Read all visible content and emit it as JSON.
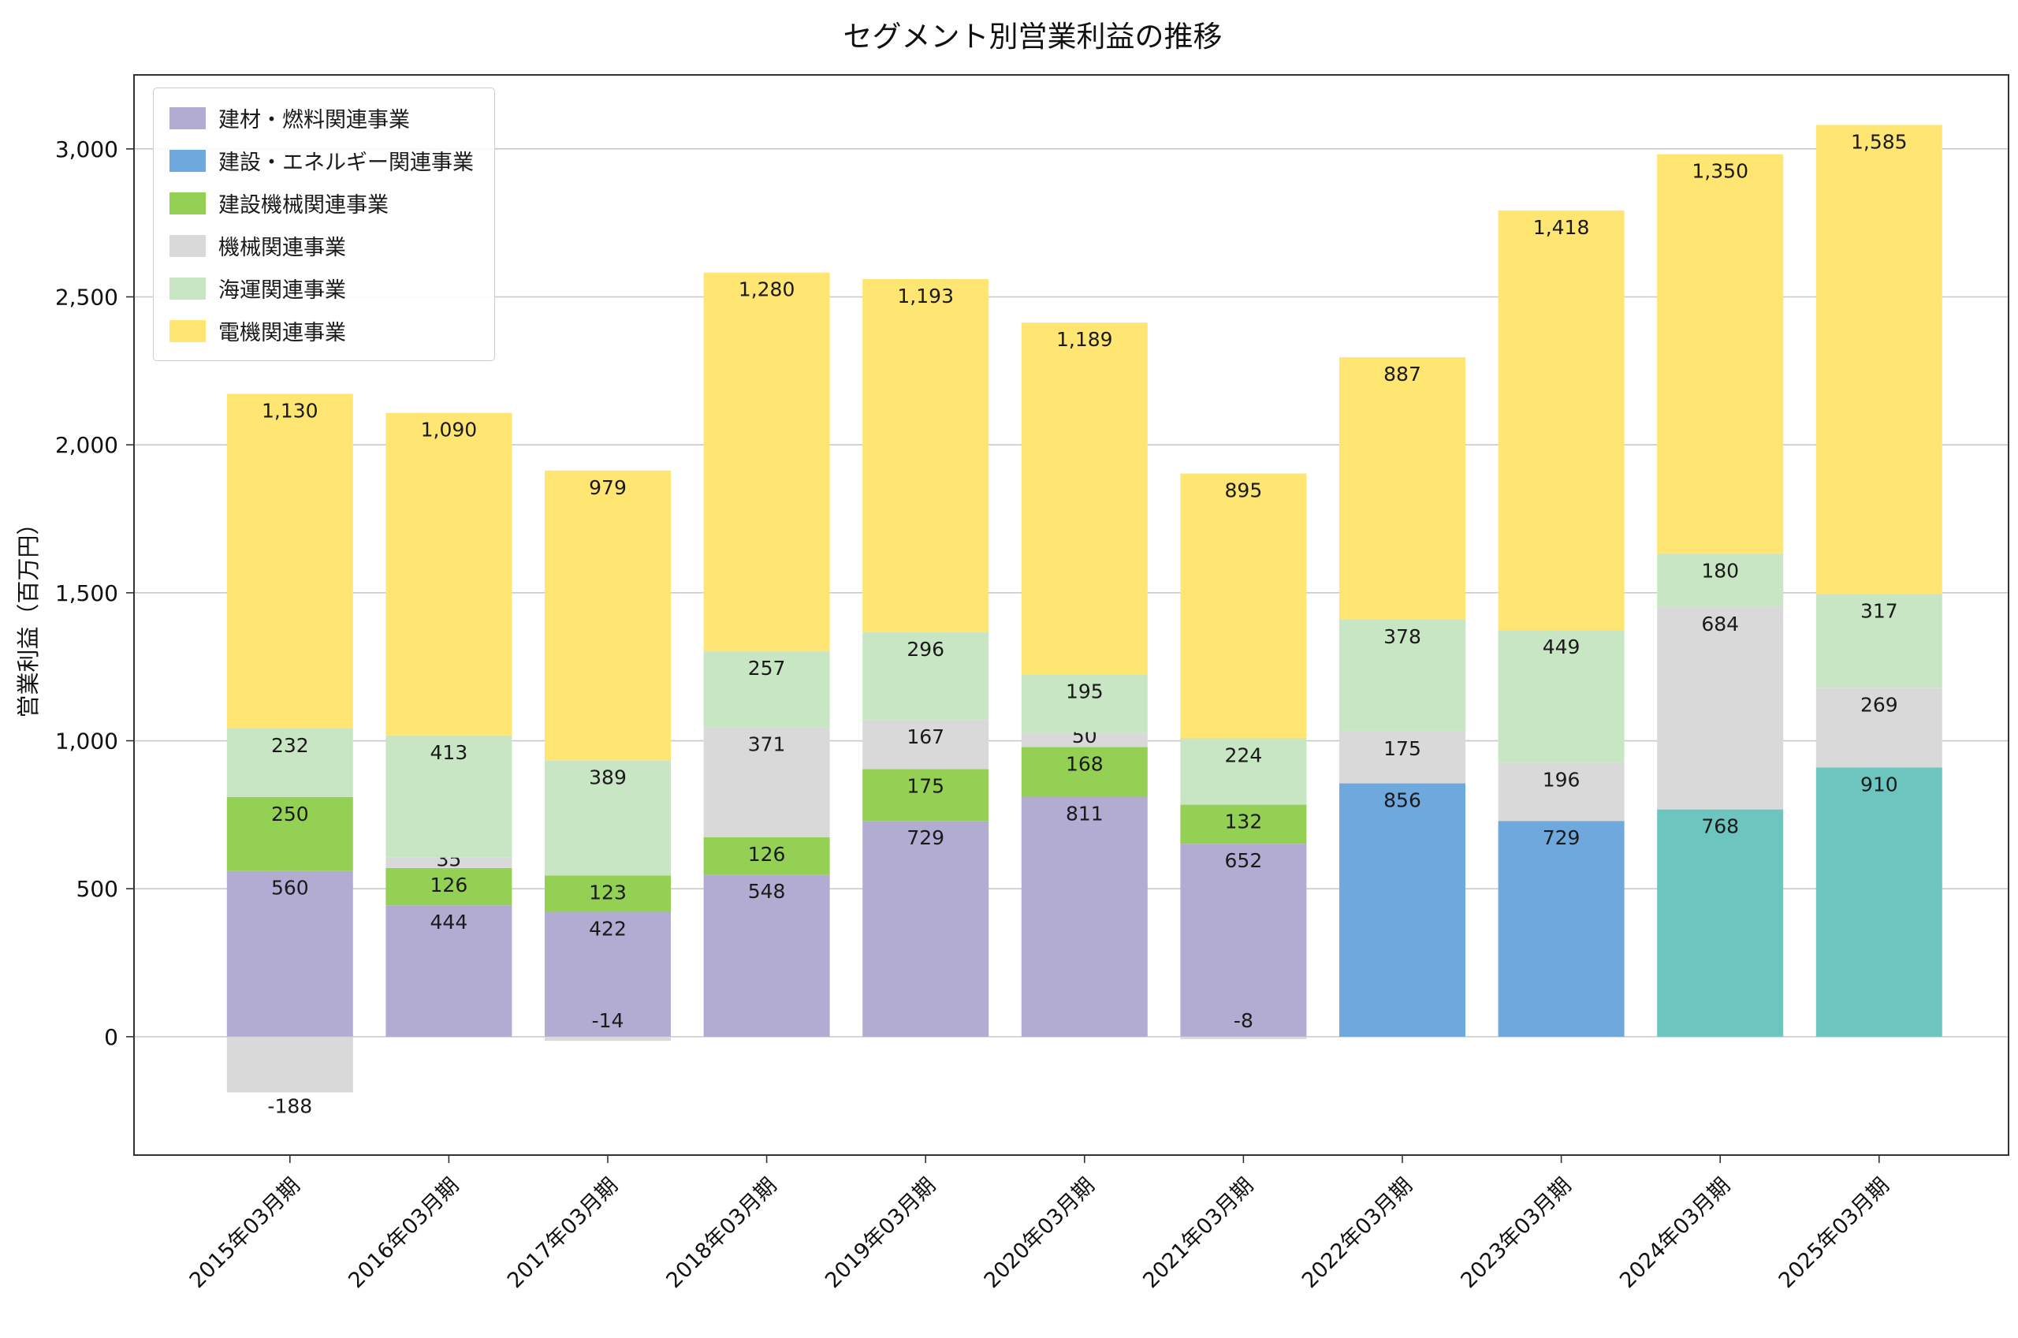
{
  "chart_data": {
    "type": "bar",
    "stacked": true,
    "title": "セグメント別営業利益の推移",
    "xlabel": "",
    "ylabel": "営業利益（百万円）",
    "ylim": [
      -400,
      3250
    ],
    "yticks": [
      0,
      500,
      1000,
      1500,
      2000,
      2500,
      3000
    ],
    "ytick_labels": [
      "0",
      "500",
      "1,000",
      "1,500",
      "2,000",
      "2,500",
      "3,000"
    ],
    "grid": true,
    "legend_position": "upper-left",
    "legend": [
      {
        "label": "建材・燃料関連事業",
        "color": "#b2abd2"
      },
      {
        "label": "建設・エネルギー関連事業",
        "color": "#6fa8dc"
      },
      {
        "label": "建設機械関連事業",
        "color": "#94d054"
      },
      {
        "label": "機械関連事業",
        "color": "#d9d9d9"
      },
      {
        "label": "海運関連事業",
        "color": "#c8e6c3"
      },
      {
        "label": "電機関連事業",
        "color": "#ffe572"
      }
    ],
    "categories": [
      "2015年03月期",
      "2016年03月期",
      "2017年03月期",
      "2018年03月期",
      "2019年03月期",
      "2020年03月期",
      "2021年03月期",
      "2022年03月期",
      "2023年03月期",
      "2024年03月期",
      "2025年03月期"
    ],
    "bars": [
      {
        "category": "2015年03月期",
        "segments": [
          {
            "name": "建材・燃料関連事業",
            "value": 560,
            "color": "#b2abd2"
          },
          {
            "name": "建設機械関連事業",
            "value": 250,
            "color": "#94d054"
          },
          {
            "name": "機械関連事業",
            "value": -188,
            "color": "#d9d9d9"
          },
          {
            "name": "海運関連事業",
            "value": 232,
            "color": "#c8e6c3"
          },
          {
            "name": "電機関連事業",
            "value": 1130,
            "color": "#ffe572"
          }
        ]
      },
      {
        "category": "2016年03月期",
        "segments": [
          {
            "name": "建材・燃料関連事業",
            "value": 444,
            "color": "#b2abd2"
          },
          {
            "name": "建設機械関連事業",
            "value": 126,
            "color": "#94d054"
          },
          {
            "name": "機械関連事業",
            "value": 35,
            "color": "#d9d9d9"
          },
          {
            "name": "海運関連事業",
            "value": 413,
            "color": "#c8e6c3"
          },
          {
            "name": "電機関連事業",
            "value": 1090,
            "color": "#ffe572"
          }
        ]
      },
      {
        "category": "2017年03月期",
        "segments": [
          {
            "name": "建材・燃料関連事業",
            "value": 422,
            "color": "#b2abd2"
          },
          {
            "name": "建設機械関連事業",
            "value": 123,
            "color": "#94d054"
          },
          {
            "name": "機械関連事業",
            "value": -14,
            "color": "#d9d9d9"
          },
          {
            "name": "海運関連事業",
            "value": 389,
            "color": "#c8e6c3"
          },
          {
            "name": "電機関連事業",
            "value": 979,
            "color": "#ffe572"
          }
        ]
      },
      {
        "category": "2018年03月期",
        "segments": [
          {
            "name": "建材・燃料関連事業",
            "value": 548,
            "color": "#b2abd2"
          },
          {
            "name": "建設機械関連事業",
            "value": 126,
            "color": "#94d054"
          },
          {
            "name": "機械関連事業",
            "value": 371,
            "color": "#d9d9d9"
          },
          {
            "name": "海運関連事業",
            "value": 257,
            "color": "#c8e6c3"
          },
          {
            "name": "電機関連事業",
            "value": 1280,
            "color": "#ffe572"
          }
        ]
      },
      {
        "category": "2019年03月期",
        "segments": [
          {
            "name": "建材・燃料関連事業",
            "value": 729,
            "color": "#b2abd2"
          },
          {
            "name": "建設機械関連事業",
            "value": 175,
            "color": "#94d054"
          },
          {
            "name": "機械関連事業",
            "value": 167,
            "color": "#d9d9d9"
          },
          {
            "name": "海運関連事業",
            "value": 296,
            "color": "#c8e6c3"
          },
          {
            "name": "電機関連事業",
            "value": 1193,
            "color": "#ffe572"
          }
        ]
      },
      {
        "category": "2020年03月期",
        "segments": [
          {
            "name": "建材・燃料関連事業",
            "value": 811,
            "color": "#b2abd2"
          },
          {
            "name": "建設機械関連事業",
            "value": 168,
            "color": "#94d054"
          },
          {
            "name": "機械関連事業",
            "value": 50,
            "color": "#d9d9d9"
          },
          {
            "name": "海運関連事業",
            "value": 195,
            "color": "#c8e6c3"
          },
          {
            "name": "電機関連事業",
            "value": 1189,
            "color": "#ffe572"
          }
        ]
      },
      {
        "category": "2021年03月期",
        "segments": [
          {
            "name": "建材・燃料関連事業",
            "value": 652,
            "color": "#b2abd2"
          },
          {
            "name": "建設機械関連事業",
            "value": 132,
            "color": "#94d054"
          },
          {
            "name": "機械関連事業",
            "value": -8,
            "color": "#d9d9d9"
          },
          {
            "name": "海運関連事業",
            "value": 224,
            "color": "#c8e6c3"
          },
          {
            "name": "電機関連事業",
            "value": 895,
            "color": "#ffe572"
          }
        ]
      },
      {
        "category": "2022年03月期",
        "segments": [
          {
            "name": "建設・エネルギー関連事業",
            "value": 856,
            "color": "#6fa8dc"
          },
          {
            "name": "機械関連事業",
            "value": 175,
            "color": "#d9d9d9"
          },
          {
            "name": "海運関連事業",
            "value": 378,
            "color": "#c8e6c3"
          },
          {
            "name": "電機関連事業",
            "value": 887,
            "color": "#ffe572"
          }
        ]
      },
      {
        "category": "2023年03月期",
        "segments": [
          {
            "name": "建設・エネルギー関連事業",
            "value": 729,
            "color": "#6fa8dc"
          },
          {
            "name": "機械関連事業",
            "value": 196,
            "color": "#d9d9d9"
          },
          {
            "name": "海運関連事業",
            "value": 449,
            "color": "#c8e6c3"
          },
          {
            "name": "電機関連事業",
            "value": 1418,
            "color": "#ffe572"
          }
        ]
      },
      {
        "category": "2024年03月期",
        "segments": [
          {
            "name": "建設・エネルギー関連事業",
            "value": 768,
            "color": "#6cc5bf"
          },
          {
            "name": "機械関連事業",
            "value": 684,
            "color": "#d9d9d9"
          },
          {
            "name": "海運関連事業",
            "value": 180,
            "color": "#c8e6c3"
          },
          {
            "name": "電機関連事業",
            "value": 1350,
            "color": "#ffe572"
          }
        ]
      },
      {
        "category": "2025年03月期",
        "segments": [
          {
            "name": "建設・エネルギー関連事業",
            "value": 910,
            "color": "#6cc5bf"
          },
          {
            "name": "機械関連事業",
            "value": 269,
            "color": "#d9d9d9"
          },
          {
            "name": "海運関連事業",
            "value": 317,
            "color": "#c8e6c3"
          },
          {
            "name": "電機関連事業",
            "value": 1585,
            "color": "#ffe572"
          }
        ]
      }
    ]
  }
}
